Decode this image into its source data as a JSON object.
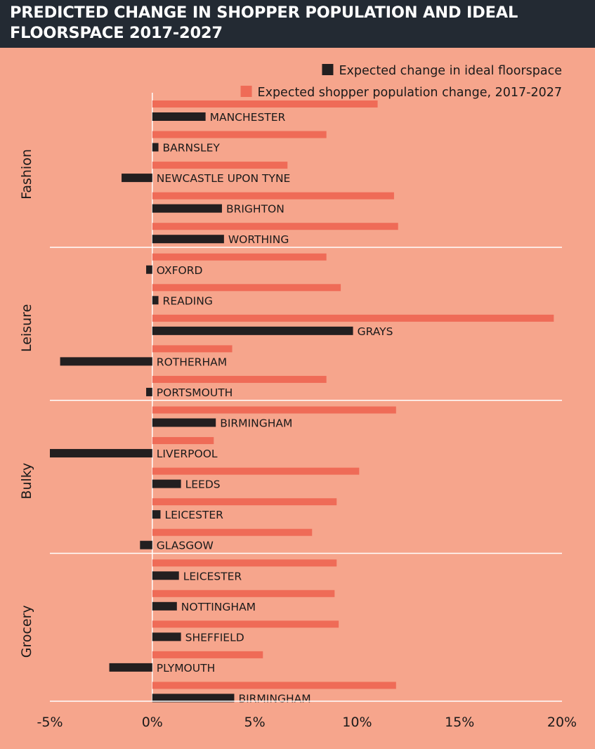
{
  "title": "PREDICTED CHANGE IN SHOPPER POPULATION AND IDEAL FLOORSPACE 2017-2027",
  "colors": {
    "background": "#f6a58c",
    "title_bar": "#232a33",
    "floorspace": "#231f20",
    "population": "#ef6b57"
  },
  "chart_data": {
    "type": "bar",
    "orientation": "horizontal",
    "title": "PREDICTED CHANGE IN SHOPPER POPULATION AND IDEAL FLOORSPACE 2017-2027",
    "xlim": [
      -5,
      20
    ],
    "x_ticks": [
      "-5%",
      "0%",
      "5%",
      "10%",
      "15%",
      "20%"
    ],
    "legend": {
      "placement": "top-right",
      "entries": [
        "Expected change in ideal floorspace",
        "Expected shopper population change, 2017-2027"
      ]
    },
    "series": [
      {
        "name": "Expected change in ideal floorspace",
        "color": "#231f20"
      },
      {
        "name": "Expected shopper population change, 2017-2027",
        "color": "#ef6b57"
      }
    ],
    "groups": [
      {
        "name": "Fashion",
        "items": [
          {
            "label": "MANCHESTER",
            "floorspace": 2.6,
            "population": 11.0
          },
          {
            "label": "BARNSLEY",
            "floorspace": 0.3,
            "population": 8.5
          },
          {
            "label": "NEWCASTLE UPON TYNE",
            "floorspace": -1.5,
            "population": 6.6
          },
          {
            "label": "BRIGHTON",
            "floorspace": 3.4,
            "population": 11.8
          },
          {
            "label": "WORTHING",
            "floorspace": 3.5,
            "population": 12.0
          }
        ]
      },
      {
        "name": "Leisure",
        "items": [
          {
            "label": "OXFORD",
            "floorspace": -0.3,
            "population": 8.5
          },
          {
            "label": "READING",
            "floorspace": 0.3,
            "population": 9.2
          },
          {
            "label": "GRAYS",
            "floorspace": 9.8,
            "population": 19.6
          },
          {
            "label": "ROTHERHAM",
            "floorspace": -4.5,
            "population": 3.9
          },
          {
            "label": "PORTSMOUTH",
            "floorspace": -0.3,
            "population": 8.5
          }
        ]
      },
      {
        "name": "Bulky",
        "items": [
          {
            "label": "BIRMINGHAM",
            "floorspace": 3.1,
            "population": 11.9
          },
          {
            "label": "LIVERPOOL",
            "floorspace": -5.0,
            "population": 3.0
          },
          {
            "label": "LEEDS",
            "floorspace": 1.4,
            "population": 10.1
          },
          {
            "label": "LEICESTER",
            "floorspace": 0.4,
            "population": 9.0
          },
          {
            "label": "GLASGOW",
            "floorspace": -0.6,
            "population": 7.8
          }
        ]
      },
      {
        "name": "Grocery",
        "items": [
          {
            "label": "LEICESTER",
            "floorspace": 1.3,
            "population": 9.0
          },
          {
            "label": "NOTTINGHAM",
            "floorspace": 1.2,
            "population": 8.9
          },
          {
            "label": "SHEFFIELD",
            "floorspace": 1.4,
            "population": 9.1
          },
          {
            "label": "PLYMOUTH",
            "floorspace": -2.1,
            "population": 5.4
          },
          {
            "label": "BIRMINGHAM",
            "floorspace": 4.0,
            "population": 11.9
          }
        ]
      }
    ]
  }
}
